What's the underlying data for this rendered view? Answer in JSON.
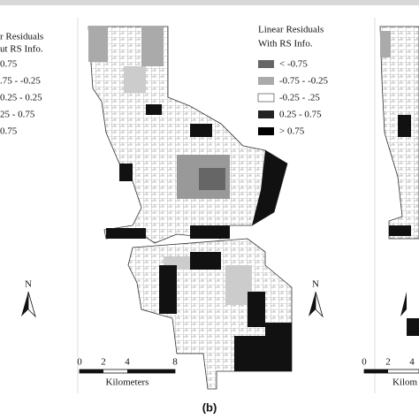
{
  "panels": [
    {
      "legend": {
        "title": [
          "r Residuals",
          "ut RS Info."
        ],
        "items": [
          "0.75",
          ".75 - -0.25",
          "0.25 - 0.25",
          "25 - 0.75",
          "0.75"
        ]
      },
      "north": "N"
    },
    {
      "legend": {
        "title": [
          "Linear Residuals",
          "With RS Info."
        ],
        "items": [
          "< -0.75",
          "-0.75 - -0.25",
          "-0.25 - .25",
          "0.25 - 0.75",
          "> 0.75"
        ]
      },
      "north": "N",
      "scale": {
        "ticks": [
          "0",
          "2",
          "4",
          "8"
        ],
        "unit": "Kilometers"
      }
    },
    {
      "scale": {
        "ticks": [
          "0",
          "2",
          "4"
        ],
        "unit": "Kilom"
      }
    }
  ],
  "caption": "(b)"
}
